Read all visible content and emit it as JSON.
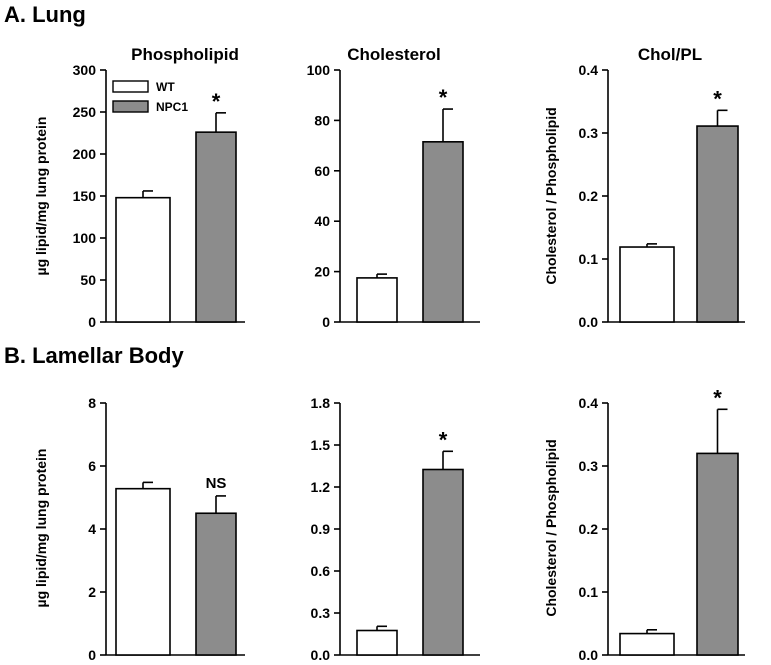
{
  "sections": {
    "a_title": "A. Lung",
    "b_title": "B. Lamellar Body"
  },
  "legend": {
    "entries": [
      {
        "label": "WT",
        "color": "#ffffff"
      },
      {
        "label": "NPC1",
        "color": "#8c8c8c"
      }
    ]
  },
  "chart_data": [
    {
      "type": "bar",
      "section": "A. Lung",
      "title": "Phospholipid",
      "ylabel": "µg lipid/mg lung protein",
      "categories": [
        "WT",
        "NPC1"
      ],
      "values": [
        148,
        226
      ],
      "errors": [
        8,
        23
      ],
      "colors": [
        "#ffffff",
        "#8c8c8c"
      ],
      "ylim": [
        0,
        300
      ],
      "yticks": [
        "0",
        "50",
        "100",
        "150",
        "200",
        "250",
        "300"
      ],
      "annotation": "*"
    },
    {
      "type": "bar",
      "section": "A. Lung",
      "title": "Cholesterol",
      "ylabel": "",
      "categories": [
        "WT",
        "NPC1"
      ],
      "values": [
        17.5,
        71.5
      ],
      "errors": [
        1.5,
        13
      ],
      "colors": [
        "#ffffff",
        "#8c8c8c"
      ],
      "ylim": [
        0,
        100
      ],
      "yticks": [
        "0",
        "20",
        "40",
        "60",
        "80",
        "100"
      ],
      "annotation": "*"
    },
    {
      "type": "bar",
      "section": "A. Lung",
      "title": "Chol/PL",
      "ylabel": "Cholesterol / Phospholipid",
      "categories": [
        "WT",
        "NPC1"
      ],
      "values": [
        0.119,
        0.311
      ],
      "errors": [
        0.005,
        0.025
      ],
      "colors": [
        "#ffffff",
        "#8c8c8c"
      ],
      "ylim": [
        0,
        0.4
      ],
      "yticks": [
        "0.0",
        "0.1",
        "0.2",
        "0.3",
        "0.4"
      ],
      "annotation": "*"
    },
    {
      "type": "bar",
      "section": "B. Lamellar Body",
      "title": "",
      "ylabel": "µg lipid/mg lung protein",
      "categories": [
        "WT",
        "NPC1"
      ],
      "values": [
        5.28,
        4.5
      ],
      "errors": [
        0.2,
        0.55
      ],
      "colors": [
        "#ffffff",
        "#8c8c8c"
      ],
      "ylim": [
        0,
        8
      ],
      "yticks": [
        "0",
        "2",
        "4",
        "6",
        "8"
      ],
      "annotation": "NS"
    },
    {
      "type": "bar",
      "section": "B. Lamellar Body",
      "title": "",
      "ylabel": "",
      "categories": [
        "WT",
        "NPC1"
      ],
      "values": [
        0.175,
        1.325
      ],
      "errors": [
        0.03,
        0.13
      ],
      "colors": [
        "#ffffff",
        "#8c8c8c"
      ],
      "ylim": [
        0,
        1.8
      ],
      "yticks": [
        "0.0",
        "0.3",
        "0.6",
        "0.9",
        "1.2",
        "1.5",
        "1.8"
      ],
      "annotation": "*"
    },
    {
      "type": "bar",
      "section": "B. Lamellar Body",
      "title": "",
      "ylabel": "Cholesterol / Phospholipid",
      "categories": [
        "WT",
        "NPC1"
      ],
      "values": [
        0.034,
        0.32
      ],
      "errors": [
        0.006,
        0.07
      ],
      "colors": [
        "#ffffff",
        "#8c8c8c"
      ],
      "ylim": [
        0,
        0.4
      ],
      "yticks": [
        "0.0",
        "0.1",
        "0.2",
        "0.3",
        "0.4"
      ],
      "annotation": "*"
    }
  ]
}
